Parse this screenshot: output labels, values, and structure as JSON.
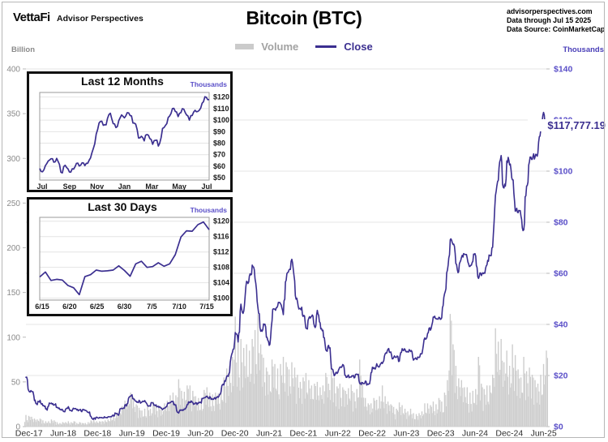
{
  "header": {
    "logo": "VettaFi",
    "logo_sub": "Advisor Perspectives",
    "title": "Bitcoin (BTC)",
    "source_lines": [
      "advisorperspectives.com",
      "Data through Jul 15 2025",
      "Data Source: CoinMarketCap"
    ]
  },
  "legend": {
    "volume_label": "Volume",
    "close_label": "Close"
  },
  "axes": {
    "left_unit": "Billion",
    "right_unit": "Thousands"
  },
  "annotation": {
    "current_price": "$117,777.19"
  },
  "colors": {
    "line_purple": "#3B2F90",
    "axis_purple": "#5A4FC8",
    "unit_purple": "#4A3FB8",
    "volume_gray": "#cdcdcd",
    "left_axis_gray": "#8a8a8a",
    "x_label_dark": "#2d2d2d",
    "gridline": "#e4e4e4",
    "baseline": "#cfcfcf",
    "inset_frame": "#9a9a9a",
    "inset_label": "#1a1a1a"
  },
  "chart_data": [
    {
      "type": "line+bar",
      "title": "Bitcoin (BTC)",
      "x_tick_labels": [
        "Dec-17",
        "Jun-18",
        "Dec-18",
        "Jun-19",
        "Dec-19",
        "Jun-20",
        "Dec-20",
        "Jun-21",
        "Dec-21",
        "Jun-22",
        "Dec-22",
        "Jun-23",
        "Dec-23",
        "Jun-24",
        "Dec-24",
        "Jun-25"
      ],
      "right_axis": {
        "unit": "Thousands",
        "ylim": [
          0,
          140
        ],
        "tick_values": [
          0,
          20,
          40,
          60,
          80,
          100,
          120,
          140
        ],
        "tick_labels": [
          "$0",
          "$20",
          "$40",
          "$60",
          "$80",
          "$100",
          "$120",
          "$140"
        ]
      },
      "left_axis": {
        "unit": "Billion",
        "ylim": [
          0,
          400
        ],
        "tick_values": [
          0,
          50,
          100,
          150,
          200,
          250,
          300,
          350,
          400
        ],
        "tick_labels": [
          "0",
          "50",
          "100",
          "150",
          "200",
          "250",
          "300",
          "350",
          "400"
        ]
      },
      "close_series": {
        "name": "Close",
        "unit": "USD thousands",
        "last_value": 117.78,
        "values": [
          19.3,
          14.0,
          13.8,
          10.2,
          8.6,
          10.3,
          8.2,
          6.9,
          8.0,
          9.2,
          8.5,
          7.5,
          6.7,
          6.4,
          6.7,
          7.8,
          6.3,
          7.0,
          6.5,
          6.6,
          6.6,
          6.3,
          5.6,
          4.0,
          3.3,
          3.7,
          3.6,
          3.4,
          3.6,
          3.8,
          3.9,
          4.1,
          5.1,
          5.3,
          7.0,
          8.5,
          9.1,
          12.0,
          10.8,
          9.9,
          10.3,
          9.6,
          10.2,
          8.3,
          8.0,
          9.2,
          8.5,
          7.5,
          7.1,
          7.2,
          8.8,
          9.3,
          9.9,
          8.5,
          5.3,
          6.4,
          6.9,
          8.6,
          9.7,
          9.4,
          9.4,
          9.1,
          9.2,
          11.3,
          11.9,
          11.7,
          10.7,
          10.8,
          11.5,
          13.8,
          16.3,
          19.7,
          21.3,
          29.0,
          36.8,
          33.1,
          47.9,
          45.2,
          56.9,
          58.9,
          63.2,
          57.8,
          46.7,
          37.3,
          40.2,
          35.0,
          31.8,
          41.5,
          46.0,
          47.2,
          48.1,
          43.8,
          57.3,
          61.3,
          65.5,
          57.0,
          48.9,
          46.2,
          43.1,
          38.5,
          42.4,
          43.2,
          39.3,
          45.5,
          40.6,
          37.7,
          30.1,
          31.8,
          22.6,
          19.9,
          20.8,
          23.3,
          24.3,
          20.0,
          20.2,
          19.4,
          19.1,
          20.5,
          16.9,
          17.2,
          17.8,
          16.5,
          21.1,
          23.1,
          24.6,
          23.5,
          24.7,
          28.5,
          30.3,
          29.2,
          27.0,
          27.2,
          25.6,
          30.5,
          30.3,
          29.2,
          29.4,
          26.0,
          26.5,
          27.0,
          28.5,
          34.7,
          36.5,
          37.7,
          42.9,
          42.3,
          42.8,
          42.6,
          52.0,
          61.2,
          73.1,
          71.3,
          63.8,
          60.6,
          66.3,
          67.5,
          66.0,
          62.7,
          64.7,
          66.8,
          58.0,
          59.1,
          60.2,
          63.3,
          67.0,
          70.2,
          90.5,
          96.4,
          106.1,
          93.4,
          104.0,
          102.4,
          96.6,
          84.3,
          83.7,
          82.5,
          77.0,
          94.2,
          103.7,
          104.6,
          105.5,
          107.1,
          116.0,
          123.0,
          117.78
        ]
      },
      "volume_series": {
        "name": "Volume",
        "unit": "USD billions",
        "values": [
          13,
          12,
          11,
          9,
          8,
          9,
          7,
          6,
          6,
          8,
          7,
          5,
          4,
          5,
          5,
          6,
          5,
          6,
          4,
          5,
          4,
          4,
          5,
          7,
          8,
          6,
          6,
          6,
          7,
          8,
          10,
          11,
          14,
          17,
          23,
          29,
          28,
          38,
          33,
          25,
          21,
          18,
          20,
          24,
          20,
          28,
          23,
          21,
          22,
          26,
          29,
          35,
          38,
          35,
          53,
          40,
          39,
          46,
          46,
          40,
          34,
          32,
          32,
          41,
          44,
          38,
          36,
          38,
          37,
          43,
          55,
          65,
          68,
          78,
          123,
          95,
          98,
          88,
          92,
          85,
          98,
          108,
          126,
          92,
          77,
          66,
          58,
          75,
          70,
          65,
          70,
          78,
          72,
          64,
          72,
          66,
          58,
          50,
          55,
          60,
          52,
          46,
          48,
          50,
          44,
          46,
          60,
          48,
          70,
          55,
          45,
          48,
          44,
          40,
          43,
          47,
          38,
          42,
          75,
          48,
          32,
          26,
          26,
          32,
          30,
          34,
          46,
          34,
          28,
          25,
          22,
          20,
          27,
          24,
          20,
          17,
          20,
          15,
          14,
          15,
          17,
          26,
          26,
          24,
          28,
          25,
          32,
          28,
          38,
          52,
          126,
          92,
          68,
          54,
          52,
          44,
          44,
          38,
          40,
          42,
          78,
          48,
          42,
          46,
          46,
          58,
          110,
          95,
          98,
          72,
          85,
          68,
          92,
          80,
          64,
          55,
          78,
          62,
          66,
          58,
          52,
          48,
          58,
          70,
          85
        ]
      }
    },
    {
      "type": "line",
      "title": "Last 12 Months",
      "unit": "Thousands",
      "ylim": [
        48,
        124
      ],
      "y_tick_values": [
        120,
        110,
        100,
        90,
        80,
        70,
        60,
        50
      ],
      "y_tick_labels": [
        "$120",
        "$110",
        "$100",
        "$90",
        "$80",
        "$70",
        "$60",
        "$50"
      ],
      "x_tick_labels": [
        "Jul",
        "Sep",
        "Nov",
        "Jan",
        "Mar",
        "May",
        "Jul"
      ],
      "values": [
        58.0,
        55.2,
        60.5,
        64.5,
        66.5,
        63.5,
        66.8,
        61.5,
        54.2,
        60.8,
        57.8,
        54.8,
        57.5,
        62.5,
        60.2,
        63.0,
        60.5,
        62.5,
        67.2,
        75.5,
        88.0,
        97.5,
        99.0,
        96.0,
        101.5,
        106.0,
        97.0,
        93.5,
        99.5,
        104.5,
        102.0,
        106.5,
        104.0,
        97.5,
        96.5,
        84.5,
        86.0,
        82.0,
        87.5,
        84.0,
        79.0,
        82.5,
        77.5,
        85.0,
        93.5,
        97.0,
        103.5,
        110.0,
        107.5,
        103.0,
        106.5,
        109.5,
        104.5,
        100.0,
        104.0,
        108.5,
        107.5,
        110.5,
        116.0,
        119.8,
        117.8
      ]
    },
    {
      "type": "line",
      "title": "Last 30 Days",
      "unit": "Thousands",
      "ylim": [
        99.5,
        121
      ],
      "y_tick_values": [
        120,
        116,
        112,
        108,
        104,
        100
      ],
      "y_tick_labels": [
        "$120",
        "$116",
        "$112",
        "$108",
        "$104",
        "$100"
      ],
      "x_tick_labels": [
        "6/15",
        "6/20",
        "6/25",
        "6/30",
        "7/5",
        "7/10",
        "7/15"
      ],
      "values": [
        105.5,
        106.8,
        104.6,
        104.9,
        104.7,
        103.3,
        102.7,
        100.9,
        105.6,
        106.1,
        107.3,
        107.0,
        107.1,
        107.3,
        108.4,
        107.2,
        105.7,
        108.9,
        109.6,
        108.0,
        108.2,
        109.2,
        108.3,
        108.9,
        111.3,
        115.9,
        117.5,
        117.4,
        119.1,
        119.8,
        117.8
      ]
    }
  ]
}
